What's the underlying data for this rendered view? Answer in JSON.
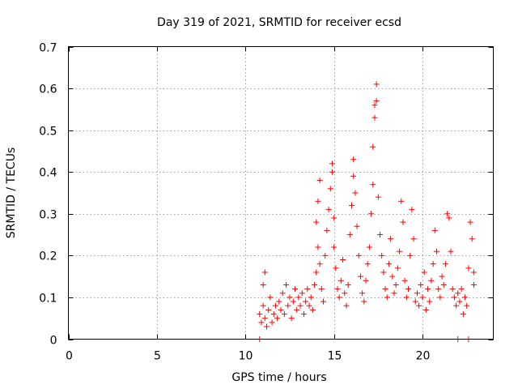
{
  "chart_data": {
    "type": "scatter",
    "title": "Day 319 of 2021, SRMTID for receiver ecsd",
    "xlabel": "GPS time / hours",
    "ylabel": "SRMTID / TECUs",
    "xlim": [
      0,
      24
    ],
    "ylim": [
      0,
      0.7
    ],
    "x_ticks": [
      0,
      5,
      10,
      15,
      20
    ],
    "x_tick_labels": [
      "0",
      "5",
      "10",
      "15",
      "20"
    ],
    "y_ticks": [
      0,
      0.1,
      0.2,
      0.3,
      0.4,
      0.5,
      0.6,
      0.7
    ],
    "y_tick_labels": [
      "0",
      "0.1",
      "0.2",
      "0.3",
      "0.4",
      "0.5",
      "0.6",
      "0.7"
    ],
    "grid": true,
    "marker_color": "#ff0000",
    "series": [
      {
        "name": "SRMTID",
        "marker": "plus",
        "points": [
          [
            10.8,
            0.06
          ],
          [
            10.9,
            0.04
          ],
          [
            11.0,
            0.08
          ],
          [
            11.0,
            0.13
          ],
          [
            11.1,
            0.16
          ],
          [
            11.1,
            0.05
          ],
          [
            11.2,
            0.03
          ],
          [
            11.3,
            0.07
          ],
          [
            11.4,
            0.1
          ],
          [
            11.5,
            0.04
          ],
          [
            11.6,
            0.06
          ],
          [
            11.7,
            0.08
          ],
          [
            11.8,
            0.05
          ],
          [
            11.9,
            0.09
          ],
          [
            12.0,
            0.07
          ],
          [
            12.1,
            0.11
          ],
          [
            12.2,
            0.06
          ],
          [
            12.3,
            0.13
          ],
          [
            12.4,
            0.08
          ],
          [
            12.5,
            0.1
          ],
          [
            12.6,
            0.05
          ],
          [
            12.7,
            0.09
          ],
          [
            12.8,
            0.12
          ],
          [
            12.9,
            0.07
          ],
          [
            13.0,
            0.1
          ],
          [
            13.1,
            0.08
          ],
          [
            13.2,
            0.11
          ],
          [
            13.3,
            0.06
          ],
          [
            13.4,
            0.09
          ],
          [
            13.5,
            0.12
          ],
          [
            13.6,
            0.08
          ],
          [
            13.7,
            0.1
          ],
          [
            13.8,
            0.07
          ],
          [
            13.9,
            0.13
          ],
          [
            14.0,
            0.16
          ],
          [
            14.0,
            0.28
          ],
          [
            14.1,
            0.33
          ],
          [
            14.1,
            0.22
          ],
          [
            14.2,
            0.38
          ],
          [
            14.2,
            0.18
          ],
          [
            14.3,
            0.12
          ],
          [
            14.4,
            0.09
          ],
          [
            14.5,
            0.2
          ],
          [
            14.6,
            0.26
          ],
          [
            14.7,
            0.31
          ],
          [
            14.8,
            0.36
          ],
          [
            14.9,
            0.4
          ],
          [
            14.9,
            0.42
          ],
          [
            15.0,
            0.29
          ],
          [
            15.0,
            0.22
          ],
          [
            15.1,
            0.17
          ],
          [
            15.2,
            0.12
          ],
          [
            15.3,
            0.1
          ],
          [
            15.4,
            0.14
          ],
          [
            15.5,
            0.19
          ],
          [
            15.6,
            0.11
          ],
          [
            15.7,
            0.08
          ],
          [
            15.8,
            0.13
          ],
          [
            15.9,
            0.25
          ],
          [
            16.0,
            0.32
          ],
          [
            16.1,
            0.39
          ],
          [
            16.1,
            0.43
          ],
          [
            16.2,
            0.35
          ],
          [
            16.3,
            0.27
          ],
          [
            16.4,
            0.2
          ],
          [
            16.5,
            0.15
          ],
          [
            16.6,
            0.11
          ],
          [
            16.7,
            0.09
          ],
          [
            16.8,
            0.14
          ],
          [
            16.9,
            0.18
          ],
          [
            17.0,
            0.22
          ],
          [
            17.1,
            0.3
          ],
          [
            17.2,
            0.37
          ],
          [
            17.2,
            0.46
          ],
          [
            17.3,
            0.53
          ],
          [
            17.3,
            0.56
          ],
          [
            17.4,
            0.61
          ],
          [
            17.4,
            0.57
          ],
          [
            17.5,
            0.34
          ],
          [
            17.6,
            0.25
          ],
          [
            17.7,
            0.2
          ],
          [
            17.8,
            0.16
          ],
          [
            17.9,
            0.12
          ],
          [
            18.0,
            0.1
          ],
          [
            18.1,
            0.18
          ],
          [
            18.2,
            0.24
          ],
          [
            18.3,
            0.15
          ],
          [
            18.4,
            0.11
          ],
          [
            18.5,
            0.13
          ],
          [
            18.6,
            0.17
          ],
          [
            18.7,
            0.21
          ],
          [
            18.8,
            0.33
          ],
          [
            18.9,
            0.28
          ],
          [
            19.0,
            0.14
          ],
          [
            19.1,
            0.1
          ],
          [
            19.2,
            0.12
          ],
          [
            19.3,
            0.2
          ],
          [
            19.4,
            0.31
          ],
          [
            19.5,
            0.24
          ],
          [
            19.6,
            0.09
          ],
          [
            19.7,
            0.11
          ],
          [
            19.8,
            0.08
          ],
          [
            19.9,
            0.13
          ],
          [
            20.0,
            0.1
          ],
          [
            20.1,
            0.16
          ],
          [
            20.2,
            0.07
          ],
          [
            20.3,
            0.12
          ],
          [
            20.4,
            0.09
          ],
          [
            20.5,
            0.14
          ],
          [
            20.6,
            0.18
          ],
          [
            20.7,
            0.26
          ],
          [
            20.8,
            0.21
          ],
          [
            20.9,
            0.12
          ],
          [
            21.0,
            0.1
          ],
          [
            21.1,
            0.15
          ],
          [
            21.2,
            0.13
          ],
          [
            21.3,
            0.18
          ],
          [
            21.4,
            0.3
          ],
          [
            21.5,
            0.29
          ],
          [
            21.6,
            0.21
          ],
          [
            21.7,
            0.12
          ],
          [
            21.8,
            0.1
          ],
          [
            21.9,
            0.08
          ],
          [
            22.0,
            0.11
          ],
          [
            22.1,
            0.09
          ],
          [
            22.2,
            0.12
          ],
          [
            22.3,
            0.06
          ],
          [
            22.4,
            0.1
          ],
          [
            22.5,
            0.08
          ],
          [
            22.6,
            0.17
          ],
          [
            22.7,
            0.28
          ],
          [
            22.8,
            0.24
          ],
          [
            22.9,
            0.13
          ],
          [
            22.9,
            0.16
          ],
          [
            10.8,
            0.0
          ],
          [
            22.0,
            0.0
          ],
          [
            22.6,
            0.0
          ]
        ]
      }
    ]
  }
}
